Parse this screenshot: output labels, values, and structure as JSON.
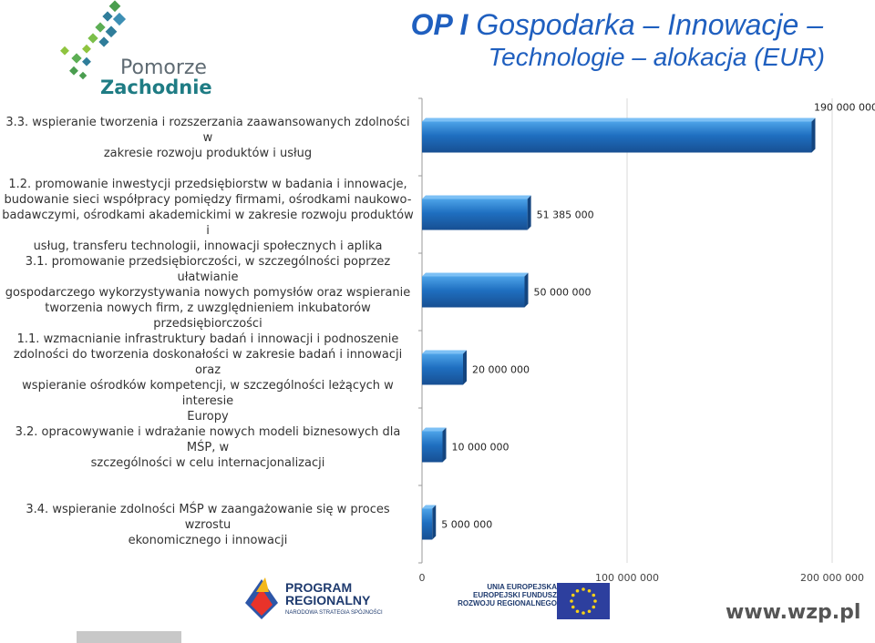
{
  "header": {
    "logo_word1": "Pomorze",
    "logo_word2": "Zachodnie",
    "title_bold": "OP I",
    "title_rest": "Gospodarka – Innowacje –",
    "title_line2": "Technologie – alokacja (EUR)"
  },
  "chart_data": {
    "type": "bar",
    "orientation": "horizontal",
    "categories": [
      "3.3. wspieranie tworzenia i rozszerzania zaawansowanych zdolności w zakresie rozwoju produktów i usług",
      "1.2. promowanie inwestycji przedsiębiorstw w badania i innowacje, budowanie sieci współpracy pomiędzy firmami, ośrodkami naukowo-badawczymi, ośrodkami akademickimi w zakresie rozwoju produktów i usług, transferu technologii, innowacji społecznych i aplika",
      "3.1. promowanie przedsiębiorczości, w szczególności poprzez ułatwianie gospodarczego wykorzystywania nowych pomysłów oraz wspieranie tworzenia nowych firm, z uwzględnieniem inkubatorów przedsiębiorczości",
      "1.1. wzmacnianie infrastruktury badań i innowacji i podnoszenie zdolności do tworzenia doskonałości w zakresie badań i innowacji oraz wspieranie ośrodków kompetencji, w szczególności leżących w interesie Europy",
      "3.2. opracowywanie i wdrażanie nowych modeli biznesowych dla MŚP, w szczególności w celu internacjonalizacji",
      "3.4. wspieranie zdolności MŚP w zaangażowanie się w proces wzrostu ekonomicznego i innowacji"
    ],
    "label_lines": [
      [
        "3.3. wspieranie tworzenia i rozszerzania zaawansowanych zdolności w",
        "zakresie rozwoju produktów i usług"
      ],
      [
        "1.2. promowanie inwestycji przedsiębiorstw w badania i innowacje,",
        "budowanie sieci współpracy pomiędzy firmami, ośrodkami naukowo-",
        "badawczymi, ośrodkami akademickimi w zakresie rozwoju produktów i",
        "usług, transferu technologii, innowacji społecznych i aplika"
      ],
      [
        "3.1. promowanie przedsiębiorczości, w szczególności poprzez ułatwianie",
        "gospodarczego wykorzystywania nowych pomysłów oraz wspieranie",
        "tworzenia nowych firm, z uwzględnieniem inkubatorów",
        "przedsiębiorczości"
      ],
      [
        "1.1. wzmacnianie infrastruktury badań i innowacji i podnoszenie",
        "zdolności do tworzenia doskonałości w zakresie badań i innowacji oraz",
        "wspieranie ośrodków kompetencji, w szczególności leżących w interesie",
        "Europy"
      ],
      [
        "3.2. opracowywanie i wdrażanie nowych modeli biznesowych dla MŚP, w",
        "szczególności w celu internacjonalizacji"
      ],
      [
        "3.4. wspieranie zdolności MŚP w zaangażowanie się w proces wzrostu",
        "ekonomicznego i innowacji"
      ]
    ],
    "values": [
      190000000,
      51385000,
      50000000,
      20000000,
      10000000,
      5000000
    ],
    "data_labels": [
      "190 000 000",
      "51 385 000",
      "50 000 000",
      "20 000 000",
      "10 000 000",
      "5 000 000"
    ],
    "xlim": [
      0,
      200000000
    ],
    "x_ticks": [
      0,
      100000000,
      200000000
    ],
    "x_tick_labels": [
      "0",
      "100 000 000",
      "200 000 000"
    ],
    "grid": true,
    "bar_color": "#1f6fc0"
  },
  "footer": {
    "program_line1": "PROGRAM",
    "program_line2": "REGIONALNY",
    "program_line3": "NARODOWA STRATEGIA SPÓJNOŚCI",
    "eu_line1": "UNIA EUROPEJSKA",
    "eu_line2": "EUROPEJSKI FUNDUSZ",
    "eu_line3": "ROZWOJU REGIONALNEGO",
    "website": "www.wzp.pl"
  }
}
